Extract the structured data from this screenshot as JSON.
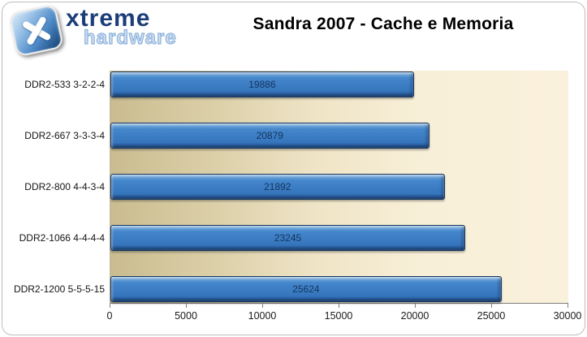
{
  "header": {
    "logo": {
      "brand_top": "xtreme",
      "brand_bottom": "hardware",
      "icon": "x-mark-icon",
      "icon_color": "#2f6cb0",
      "brand_top_color": "#1c3e78",
      "brand_bottom_outline_color": "#8fb2dc"
    },
    "title": "Sandra 2007 - Cache e Memoria"
  },
  "chart_data": {
    "type": "bar",
    "orientation": "horizontal",
    "title": "Sandra 2007 - Cache e Memoria",
    "categories": [
      "DDR2-533 3-2-2-4",
      "DDR2-667 3-3-3-4",
      "DDR2-800 4-4-3-4",
      "DDR2-1066 4-4-4-4",
      "DDR2-1200 5-5-5-15"
    ],
    "values": [
      19886,
      20879,
      21892,
      23245,
      25624
    ],
    "value_labels": [
      "19886",
      "20879",
      "21892",
      "23245",
      "25624"
    ],
    "xlabel": "",
    "ylabel": "",
    "xlim": [
      0,
      30000
    ],
    "x_ticks": [
      0,
      5000,
      10000,
      15000,
      20000,
      25000,
      30000
    ],
    "grid": false,
    "legend_position": "none",
    "bar_color": "#3c7cc3",
    "bar_border_color": "#16375f",
    "value_label_color": "#12355f",
    "plot_bg_gradient_left": "#cabc90",
    "plot_bg_gradient_right": "#faf1dc"
  }
}
